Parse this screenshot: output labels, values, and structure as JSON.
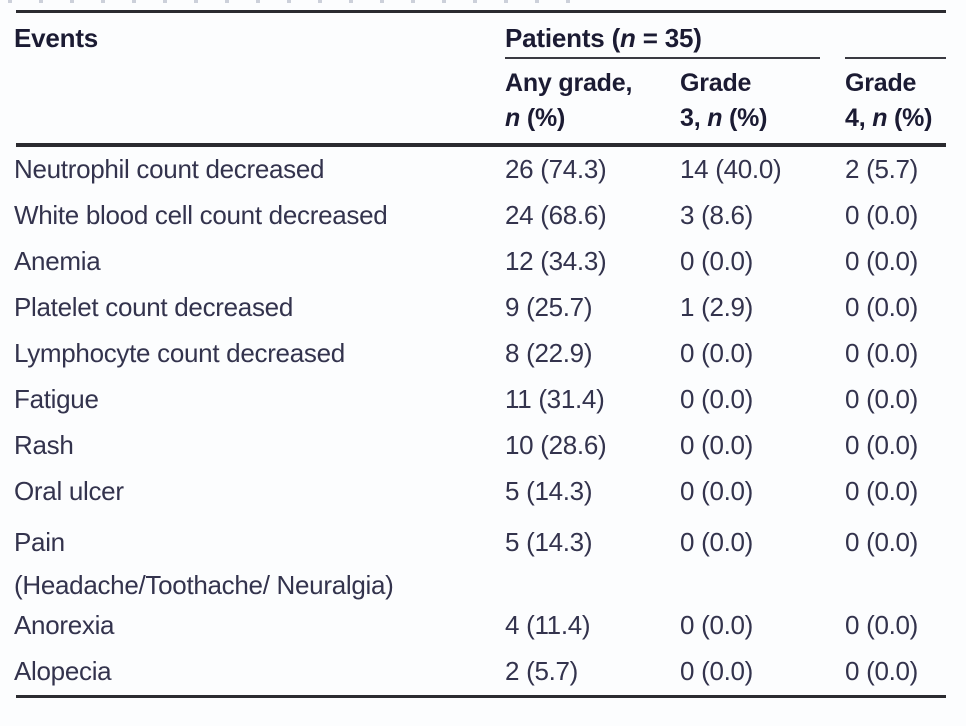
{
  "table": {
    "corner_header": "Events",
    "group_header": {
      "pre": "Patients (",
      "n": "n",
      "post": " = 35)"
    },
    "columns": {
      "any_grade": {
        "line1": "Any grade,",
        "n": "n",
        "rest": " (%)"
      },
      "grade3": {
        "line1": "Grade",
        "pre": "3, ",
        "n": "n",
        "rest": " (%)"
      },
      "grade4": {
        "line1": "Grade",
        "pre": "4, ",
        "n": "n",
        "rest": " (%)"
      }
    },
    "rows": [
      {
        "event": "Neutrophil count decreased",
        "any": "26 (74.3)",
        "g3": "14 (40.0)",
        "g4": "2 (5.7)"
      },
      {
        "event": "White blood cell count decreased",
        "any": "24 (68.6)",
        "g3": "3 (8.6)",
        "g4": "0 (0.0)"
      },
      {
        "event": "Anemia",
        "any": "12 (34.3)",
        "g3": "0 (0.0)",
        "g4": "0 (0.0)"
      },
      {
        "event": "Platelet count decreased",
        "any": "9 (25.7)",
        "g3": "1 (2.9)",
        "g4": "0 (0.0)"
      },
      {
        "event": "Lymphocyte count decreased",
        "any": "8 (22.9)",
        "g3": "0 (0.0)",
        "g4": "0 (0.0)"
      },
      {
        "event": "Fatigue",
        "any": "11 (31.4)",
        "g3": "0 (0.0)",
        "g4": "0 (0.0)"
      },
      {
        "event": "Rash",
        "any": "10 (28.6)",
        "g3": "0 (0.0)",
        "g4": "0 (0.0)"
      },
      {
        "event": "Oral ulcer",
        "any": "5 (14.3)",
        "g3": "0 (0.0)",
        "g4": "0 (0.0)"
      },
      {
        "event": "Pain",
        "event_line2": "(Headache/Toothache/ Neuralgia)",
        "any": "5 (14.3)",
        "g3": "0 (0.0)",
        "g4": "0 (0.0)"
      },
      {
        "event": "Anorexia",
        "any": "4 (11.4)",
        "g3": "0 (0.0)",
        "g4": "0 (0.0)"
      },
      {
        "event": "Alopecia",
        "any": "2 (5.7)",
        "g3": "0 (0.0)",
        "g4": "0 (0.0)"
      }
    ],
    "colors": {
      "text_body": "#33334d",
      "text_header": "#1b1b33",
      "rule": "#2b2b30",
      "background": "#fcfdfe"
    }
  }
}
